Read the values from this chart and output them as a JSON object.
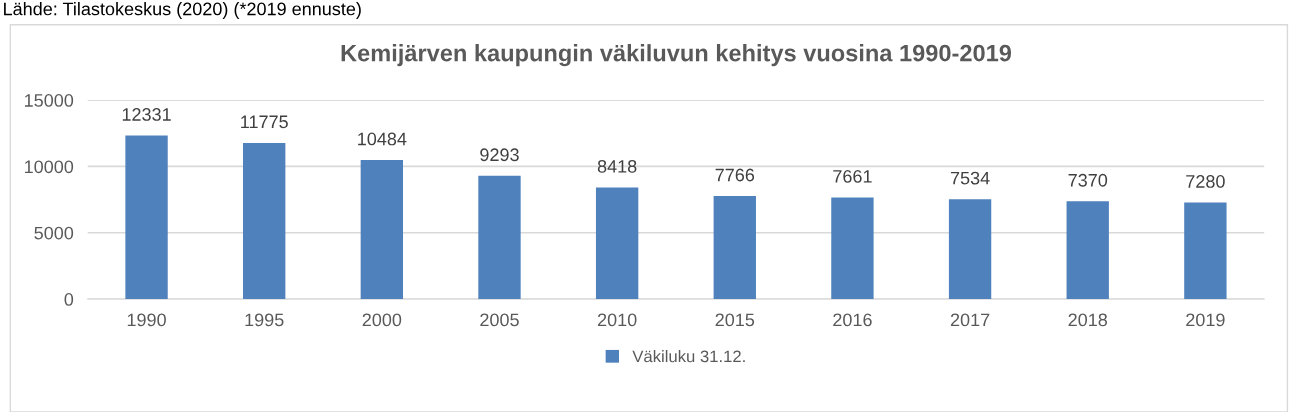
{
  "chart_data": {
    "type": "bar",
    "title": "Kemijärven kaupungin väkiluvun kehitys vuosina 1990-2019",
    "categories": [
      "1990",
      "1995",
      "2000",
      "2005",
      "2010",
      "2015",
      "2016",
      "2017",
      "2018",
      "2019"
    ],
    "series": [
      {
        "name": "Väkiluku 31.12.",
        "color": "#4f81bd",
        "values": [
          12331,
          11775,
          10484,
          9293,
          8418,
          7766,
          7661,
          7534,
          7370,
          7280
        ]
      }
    ],
    "ylim": [
      0,
      15000
    ],
    "yticks": [
      0,
      5000,
      10000,
      15000
    ],
    "grid": "y",
    "legend": "bottom",
    "data_labels": true,
    "annotations": [
      "Lähde: Tilastokeskus (2020) (*2019 ennuste)"
    ]
  }
}
